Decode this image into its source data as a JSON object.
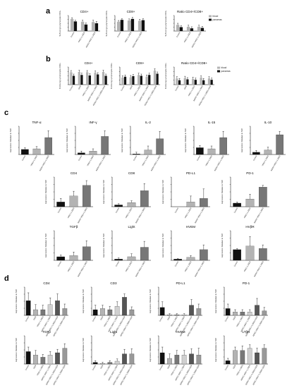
{
  "panel_letters": [
    "a",
    "b",
    "c",
    "d"
  ],
  "colors": {
    "blood": "#b3b3b3",
    "pancreas": "#111111",
    "axis": "#000000",
    "error": "#000000"
  },
  "chart_data": [
    {
      "id": "a1",
      "type": "bar",
      "panel": "a",
      "title": "CD4+",
      "ylabel": "% Among Lymphocytes CD3+",
      "ylim": [
        0,
        100
      ],
      "categories": [
        "Control",
        "+MSC+1,25D3",
        "AD/SC+MSC+1,25D3"
      ],
      "series": [
        {
          "name": "blood",
          "values": [
            78,
            60,
            58
          ]
        },
        {
          "name": "pancreas",
          "values": [
            62,
            42,
            50
          ]
        }
      ],
      "errors": [
        8,
        10,
        12
      ]
    },
    {
      "id": "a2",
      "type": "bar",
      "panel": "a",
      "title": "CD8+",
      "ylabel": "% Among Lymphocytes CD3+",
      "ylim": [
        0,
        100
      ],
      "categories": [
        "Control",
        "+MSC+1,25D3",
        "AD/SC+MSC+1,25D3"
      ],
      "series": [
        {
          "name": "blood",
          "values": [
            60,
            68,
            66
          ]
        },
        {
          "name": "pancreas",
          "values": [
            72,
            78,
            70
          ]
        }
      ],
      "errors": [
        8,
        10,
        10
      ]
    },
    {
      "id": "a3",
      "type": "bar",
      "panel": "a",
      "title": "Ratio CD4+/CD8+",
      "ylabel": "% Among Lymphocytes CD3+",
      "ylim": [
        0,
        4
      ],
      "categories": [
        "Control",
        "+MSC+1,25D3",
        "AD/SC+MSC+1,25D3"
      ],
      "series": [
        {
          "name": "blood",
          "values": [
            1.6,
            1.1,
            1.1
          ]
        },
        {
          "name": "pancreas",
          "values": [
            1.0,
            0.7,
            0.8
          ]
        }
      ],
      "errors": [
        0.4,
        0.4,
        0.4
      ],
      "legend": [
        "blood",
        "pancreas"
      ]
    },
    {
      "id": "b1",
      "type": "bar",
      "panel": "b",
      "title": "CD4+",
      "ylabel": "% Among Lymphocytes CD3+",
      "ylim": [
        0,
        100
      ],
      "categories": [
        "Control",
        "GEM",
        "+MSC+1,25D3",
        "AD/SC+MSC+1,25D3",
        "AD/SC+MSC+1,25D3+GEM"
      ],
      "series": [
        {
          "name": "blood",
          "values": [
            70,
            72,
            70,
            68,
            72
          ]
        },
        {
          "name": "pancreas",
          "values": [
            50,
            55,
            52,
            58,
            50
          ]
        }
      ],
      "errors": [
        10,
        10,
        10,
        10,
        10
      ]
    },
    {
      "id": "b2",
      "type": "bar",
      "panel": "b",
      "title": "CD8+",
      "ylabel": "% Among Lymphocytes CD3+",
      "ylim": [
        0,
        100
      ],
      "categories": [
        "Control",
        "GEM",
        "+MSC+1,25D3",
        "AD/SC+MSC+1,25D3",
        "AD/SC+MSC+1,25D3+GEM"
      ],
      "series": [
        {
          "name": "blood",
          "values": [
            40,
            42,
            55,
            45,
            80
          ]
        },
        {
          "name": "pancreas",
          "values": [
            45,
            48,
            50,
            55,
            62
          ]
        }
      ],
      "errors": [
        10,
        10,
        10,
        10,
        10
      ]
    },
    {
      "id": "b3",
      "type": "bar",
      "panel": "b",
      "title": "Ratio CD4+/CD8+",
      "ylabel": "% Among Lymphocytes CD3+",
      "ylim": [
        0,
        4
      ],
      "categories": [
        "Control",
        "GEM",
        "+MSC+1,25D3",
        "AD/SC+MSC+1,25D3",
        "AD/SC+MSC+1,25D3+GEM"
      ],
      "series": [
        {
          "name": "blood",
          "values": [
            1.4,
            1.5,
            1.3,
            1.6,
            1.4
          ]
        },
        {
          "name": "pancreas",
          "values": [
            1.0,
            1.2,
            1.1,
            1.0,
            1.1
          ]
        }
      ],
      "errors": [
        0.4,
        0.4,
        0.4,
        0.4,
        0.4
      ],
      "legend": [
        "blood",
        "pancreas"
      ]
    },
    {
      "id": "c1",
      "type": "bar",
      "panel": "c",
      "title": "TNF-α",
      "ylabel": "Expression Relative to S18",
      "ylim": [
        0,
        5
      ],
      "categories": [
        "Control",
        "+MSC+1,25D3",
        "AD/SC+MSC+1,25D3"
      ],
      "values": [
        0.9,
        1.0,
        3.0
      ],
      "errors": [
        0.3,
        0.4,
        1.2
      ],
      "colors": [
        "#111111",
        "#b3b3b3",
        "#777777"
      ]
    },
    {
      "id": "c2",
      "type": "bar",
      "panel": "c",
      "title": "INF-γ",
      "ylabel": "Expression Relative to S18",
      "ylim": [
        0,
        5
      ],
      "categories": [
        "Control",
        "+MSC+1,25D3",
        "AD/SC+MSC+1,25D3"
      ],
      "values": [
        0.3,
        0.6,
        3.2
      ],
      "errors": [
        0.3,
        0.4,
        1.0
      ],
      "colors": [
        "#111111",
        "#b3b3b3",
        "#777777"
      ]
    },
    {
      "id": "c3",
      "type": "bar",
      "panel": "c",
      "title": "IL-2",
      "ylabel": "Expression Relative to S18",
      "ylim": [
        0,
        5
      ],
      "categories": [
        "Control",
        "+MSC+1,25D3",
        "AD/SC+MSC+1,25D3"
      ],
      "values": [
        0.1,
        0.8,
        2.8
      ],
      "errors": [
        0.3,
        0.7,
        1.3
      ],
      "colors": [
        "#111111",
        "#b3b3b3",
        "#777777"
      ]
    },
    {
      "id": "c4",
      "type": "bar",
      "panel": "c",
      "title": "IL-15",
      "ylabel": "Expression Relative to S18",
      "ylim": [
        0,
        5
      ],
      "categories": [
        "Control",
        "+MSC+1,25D3",
        "AD/SC+MSC+1,25D3"
      ],
      "values": [
        1.2,
        1.0,
        3.0
      ],
      "errors": [
        0.4,
        0.5,
        1.1
      ],
      "colors": [
        "#111111",
        "#b3b3b3",
        "#777777"
      ]
    },
    {
      "id": "c5",
      "type": "bar",
      "panel": "c",
      "title": "IL-10",
      "ylabel": "Expression Relative to S18",
      "ylim": [
        0,
        5
      ],
      "categories": [
        "Control",
        "+MSC+1,25D3",
        "AD/SC+MSC+1,25D3"
      ],
      "values": [
        0.4,
        0.8,
        3.5
      ],
      "errors": [
        0.3,
        0.5,
        0.6
      ],
      "colors": [
        "#111111",
        "#b3b3b3",
        "#777777"
      ]
    },
    {
      "id": "c6",
      "type": "bar",
      "panel": "c",
      "title": "CD4",
      "ylabel": "Expression Relative to S18",
      "ylim": [
        0,
        5
      ],
      "categories": [
        "Control",
        "+MSC+1,25D3",
        "AD/SC+MSC+1,25D3"
      ],
      "values": [
        0.8,
        1.8,
        3.6
      ],
      "errors": [
        0.6,
        0.8,
        0.8
      ],
      "colors": [
        "#111111",
        "#b3b3b3",
        "#777777"
      ]
    },
    {
      "id": "c7",
      "type": "bar",
      "panel": "c",
      "title": "CD8",
      "ylabel": "Expression Relative to S18",
      "ylim": [
        0,
        5
      ],
      "categories": [
        "Control",
        "+MSC+1,25D3",
        "AD/SC+MSC+1,25D3"
      ],
      "values": [
        0.3,
        0.7,
        2.7
      ],
      "errors": [
        0.2,
        0.3,
        1.2
      ],
      "colors": [
        "#111111",
        "#b3b3b3",
        "#777777"
      ]
    },
    {
      "id": "c8",
      "type": "bar",
      "panel": "c",
      "title": "PD-L1",
      "ylabel": "Expression Relative to S18",
      "ylim": [
        0,
        5
      ],
      "categories": [
        "Control",
        "+MSC+1,25D3",
        "AD/SC+MSC+1,25D3"
      ],
      "values": [
        0.0,
        0.8,
        1.4
      ],
      "errors": [
        0.0,
        1.0,
        1.6
      ],
      "colors": [
        "#111111",
        "#b3b3b3",
        "#777777"
      ]
    },
    {
      "id": "c9",
      "type": "bar",
      "panel": "c",
      "title": "PD-1",
      "ylabel": "Expression Relative to S18",
      "ylim": [
        0,
        5
      ],
      "categories": [
        "Control",
        "+MSC+1,25D3",
        "AD/SC+MSC+1,25D3"
      ],
      "values": [
        0.6,
        1.3,
        3.3
      ],
      "errors": [
        0.2,
        0.8,
        0.3
      ],
      "colors": [
        "#111111",
        "#b3b3b3",
        "#777777"
      ]
    },
    {
      "id": "c10",
      "type": "bar",
      "panel": "c",
      "title": "TGFβ",
      "ylabel": "Expression Relative to S18",
      "ylim": [
        0,
        5
      ],
      "categories": [
        "Control",
        "+MSC+1,25D3",
        "AD/SC+MSC+1,25D3"
      ],
      "values": [
        0.6,
        0.8,
        2.3
      ],
      "errors": [
        0.3,
        0.6,
        1.0
      ],
      "colors": [
        "#111111",
        "#b3b3b3",
        "#777777"
      ]
    },
    {
      "id": "c11",
      "type": "bar",
      "panel": "c",
      "title": "Light",
      "ylabel": "Expression Relative to S18",
      "ylim": [
        0,
        5
      ],
      "categories": [
        "Control",
        "+MSC+1,25D3",
        "AD/SC+MSC+1,25D3"
      ],
      "values": [
        0.2,
        0.6,
        2.2
      ],
      "errors": [
        0.2,
        0.5,
        1.0
      ],
      "colors": [
        "#111111",
        "#b3b3b3",
        "#777777"
      ]
    },
    {
      "id": "c12",
      "type": "bar",
      "panel": "c",
      "title": "HVEM",
      "ylabel": "Expression Relative to S18",
      "ylim": [
        0,
        5
      ],
      "categories": [
        "Control",
        "+MSC+1,25D3",
        "AD/SC+MSC+1,25D3"
      ],
      "values": [
        0.2,
        0.5,
        1.8
      ],
      "errors": [
        0.1,
        0.3,
        0.8
      ],
      "colors": [
        "#111111",
        "#b3b3b3",
        "#777777"
      ]
    },
    {
      "id": "c13",
      "type": "bar",
      "panel": "c",
      "title": "HVβR",
      "ylabel": "Expression Relative to S18",
      "ylim": [
        0,
        5
      ],
      "categories": [
        "Control",
        "+MSC+1,25D3",
        "AD/SC+MSC+1,25D3"
      ],
      "values": [
        1.8,
        2.4,
        2.0
      ],
      "errors": [
        0.2,
        1.6,
        0.6
      ],
      "colors": [
        "#111111",
        "#b3b3b3",
        "#777777"
      ]
    },
    {
      "id": "d1",
      "type": "bar",
      "panel": "d",
      "title": "CD4",
      "ylabel": "Expression Relative to S18",
      "ylim": [
        0,
        5
      ],
      "categories": [
        "Control",
        "GEM",
        "+MSC+1,25D3",
        "AD/SC+MSC+1,25D3",
        "AD/SC+MSC+1,25D3+GEM",
        "AD/SC+MSC+1,25D3+GEM"
      ],
      "values": [
        2.6,
        1.0,
        1.0,
        1.9,
        2.6,
        1.2
      ],
      "errors": [
        1.4,
        0.9,
        0.8,
        1.2,
        1.2,
        0.8
      ],
      "colors": [
        "#111111",
        "#b3b3b3",
        "#777777",
        "#d0d0d0",
        "#555555",
        "#999999"
      ]
    },
    {
      "id": "d2",
      "type": "bar",
      "panel": "d",
      "title": "CD3",
      "ylabel": "Expression Relative to S18",
      "ylim": [
        0,
        5
      ],
      "categories": [
        "Control",
        "GEM",
        "+MSC+1,25D3",
        "AD/SC+MSC+1,25D3",
        "AD/SC+MSC+1,25D3+GEM",
        "AD/SC+MSC+1,25D3+GEM"
      ],
      "values": [
        1.0,
        1.2,
        1.0,
        1.6,
        3.2,
        1.0
      ],
      "errors": [
        0.8,
        0.6,
        0.6,
        0.8,
        0.6,
        0.5
      ],
      "colors": [
        "#111111",
        "#b3b3b3",
        "#777777",
        "#d0d0d0",
        "#555555",
        "#999999"
      ]
    },
    {
      "id": "d3",
      "type": "bar",
      "panel": "d",
      "title": "PD-L1",
      "ylabel": "Expression Relative to S18",
      "ylim": [
        0,
        5
      ],
      "categories": [
        "Control",
        "GEM",
        "+MSC+1,25D3",
        "AD/SC+MSC+1,25D3",
        "AD/SC+MSC+1,25D3+GEM",
        "AD/SC+MSC+1,25D3+GEM"
      ],
      "values": [
        1.4,
        0.1,
        0.1,
        0.1,
        1.8,
        1.2
      ],
      "errors": [
        1.0,
        0.2,
        0.2,
        0.2,
        1.0,
        0.8
      ],
      "colors": [
        "#111111",
        "#b3b3b3",
        "#777777",
        "#d0d0d0",
        "#555555",
        "#999999"
      ]
    },
    {
      "id": "d4",
      "type": "bar",
      "panel": "d",
      "title": "PD-1",
      "ylabel": "Expression Relative to S18",
      "ylim": [
        0,
        5
      ],
      "categories": [
        "Control",
        "GEM",
        "+MSC+1,25D3",
        "AD/SC+MSC+1,25D3",
        "AD/SC+MSC+1,25D3+GEM",
        "AD/SC+MSC+1,25D3+GEM"
      ],
      "values": [
        1.2,
        0.6,
        0.6,
        0.6,
        1.8,
        0.8
      ],
      "errors": [
        0.8,
        0.4,
        0.4,
        0.4,
        1.2,
        0.6
      ],
      "colors": [
        "#111111",
        "#b3b3b3",
        "#777777",
        "#d0d0d0",
        "#555555",
        "#999999"
      ]
    },
    {
      "id": "d5",
      "type": "bar",
      "panel": "d",
      "title": "TGFβ",
      "ylabel": "Expression Relative to S18",
      "ylim": [
        0,
        5
      ],
      "categories": [
        "Control",
        "GEM",
        "+MSC+1,25D3",
        "AD/SC+MSC+1,25D3",
        "AD/SC+MSC+1,25D3+GEM",
        "AD/SC+MSC+1,25D3+GEM"
      ],
      "values": [
        2.2,
        1.6,
        1.2,
        1.6,
        2.0,
        2.8
      ],
      "errors": [
        0.8,
        0.8,
        0.5,
        0.6,
        0.6,
        0.8
      ],
      "colors": [
        "#111111",
        "#b3b3b3",
        "#777777",
        "#d0d0d0",
        "#555555",
        "#999999"
      ]
    },
    {
      "id": "d6",
      "type": "bar",
      "panel": "d",
      "title": "Light",
      "ylabel": "Expression Relative to S18",
      "ylim": [
        0,
        5
      ],
      "categories": [
        "Control",
        "GEM",
        "+MSC+1,25D3",
        "AD/SC+MSC+1,25D3",
        "AD/SC+MSC+1,25D3+GEM",
        "AD/SC+MSC+1,25D3+GEM"
      ],
      "values": [
        0.3,
        0.1,
        0.3,
        0.5,
        1.8,
        1.8
      ],
      "errors": [
        0.3,
        0.2,
        0.3,
        0.4,
        0.8,
        0.9
      ],
      "colors": [
        "#111111",
        "#b3b3b3",
        "#777777",
        "#d0d0d0",
        "#555555",
        "#999999"
      ]
    },
    {
      "id": "d7",
      "type": "bar",
      "panel": "d",
      "title": "HVEM",
      "ylabel": "Expression Relative to S18",
      "ylim": [
        0,
        5
      ],
      "categories": [
        "Control",
        "GEM",
        "+MSC+1,25D3",
        "AD/SC+MSC+1,25D3",
        "AD/SC+MSC+1,25D3+GEM",
        "AD/SC+MSC+1,25D3+GEM"
      ],
      "values": [
        2.0,
        1.0,
        1.6,
        1.6,
        1.8,
        1.6
      ],
      "errors": [
        1.0,
        0.8,
        0.8,
        0.8,
        0.9,
        1.2
      ],
      "colors": [
        "#111111",
        "#b3b3b3",
        "#777777",
        "#d0d0d0",
        "#555555",
        "#999999"
      ]
    },
    {
      "id": "d8",
      "type": "bar",
      "panel": "d",
      "title": "LTβR",
      "ylabel": "Expression Relative to S18",
      "ylim": [
        0,
        5
      ],
      "categories": [
        "Control",
        "GEM",
        "+MSC+1,25D3",
        "AD/SC+MSC+1,25D3",
        "AD/SC+MSC+1,25D3+GEM",
        "AD/SC+MSC+1,25D3+GEM"
      ],
      "values": [
        0.6,
        2.4,
        2.4,
        2.8,
        2.0,
        2.8
      ],
      "errors": [
        0.4,
        0.6,
        0.8,
        0.6,
        0.8,
        0.6
      ],
      "colors": [
        "#111111",
        "#b3b3b3",
        "#777777",
        "#d0d0d0",
        "#555555",
        "#999999"
      ]
    }
  ]
}
